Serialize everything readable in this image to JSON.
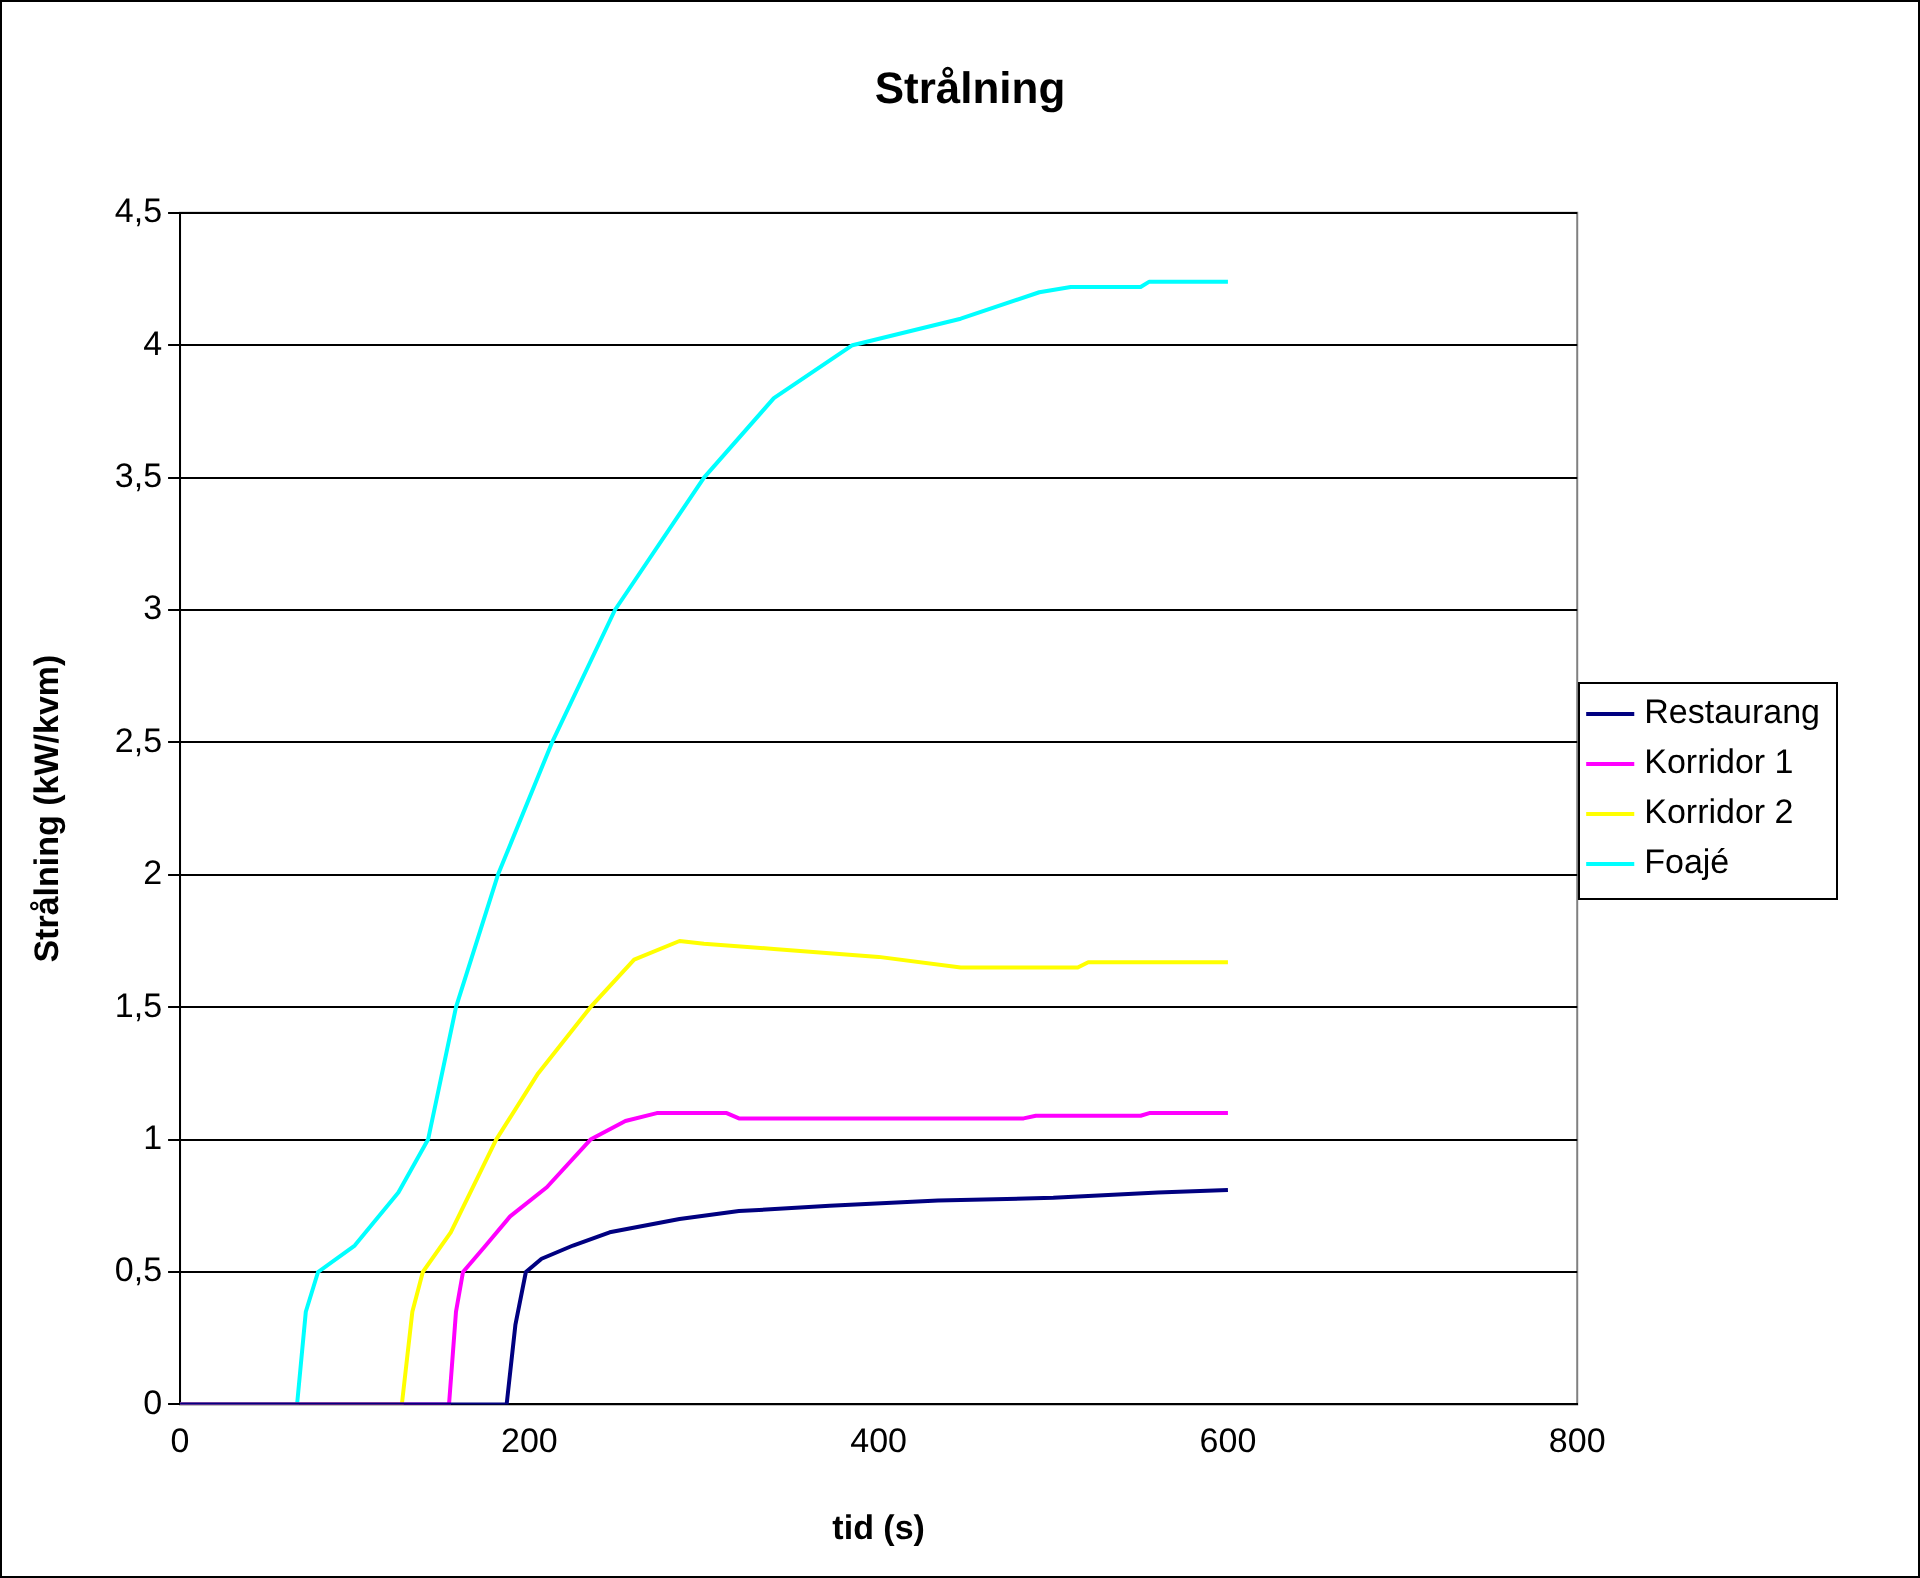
{
  "chart_data": {
    "type": "line",
    "title": "Strålning",
    "xlabel": "tid (s)",
    "ylabel": "Strålning (kW/kvm)",
    "xlim": [
      0,
      800
    ],
    "xticks": [
      0,
      200,
      400,
      600,
      800
    ],
    "ylim": [
      0,
      4.5
    ],
    "yticks": [
      0,
      {
        "value": 0.5,
        "label": "0,5"
      },
      1,
      {
        "value": 1.5,
        "label": "1,5"
      },
      2,
      {
        "value": 2.5,
        "label": "2,5"
      },
      3,
      {
        "value": 3.5,
        "label": "3,5"
      },
      4,
      {
        "value": 4.5,
        "label": "4,5"
      }
    ],
    "grid": "y",
    "legend": "right",
    "marker": "none",
    "line_style": "solid",
    "series": [
      {
        "name": "Restaurang",
        "color": "#000080",
        "x": [
          0,
          187,
          192,
          198,
          207,
          225,
          246,
          286,
          320,
          372,
          434,
          500,
          560,
          600
        ],
        "values": [
          0,
          0,
          0.3,
          0.5,
          0.55,
          0.6,
          0.65,
          0.7,
          0.73,
          0.75,
          0.77,
          0.78,
          0.8,
          0.81
        ]
      },
      {
        "name": "Korridor 1",
        "color": "#ff00ff",
        "x": [
          0,
          154,
          158,
          162,
          175,
          189,
          210,
          235,
          255,
          273,
          313,
          320,
          483,
          490,
          550,
          555,
          600
        ],
        "values": [
          0,
          0,
          0.35,
          0.5,
          0.6,
          0.71,
          0.82,
          1.0,
          1.07,
          1.1,
          1.1,
          1.08,
          1.08,
          1.09,
          1.09,
          1.1,
          1.1
        ]
      },
      {
        "name": "Korridor 2",
        "color": "#ffff00",
        "x": [
          0,
          127,
          133,
          139,
          155,
          181,
          205,
          235,
          260,
          286,
          300,
          340,
          400,
          447,
          514,
          520,
          600
        ],
        "values": [
          0,
          0,
          0.35,
          0.5,
          0.65,
          1.0,
          1.25,
          1.5,
          1.68,
          1.75,
          1.74,
          1.72,
          1.69,
          1.65,
          1.65,
          1.67,
          1.67
        ]
      },
      {
        "name": "Foajé",
        "color": "#00ffff",
        "x": [
          0,
          67,
          72,
          79,
          100,
          125,
          142,
          158,
          182,
          213,
          249,
          300,
          340,
          385,
          447,
          492,
          510,
          550,
          555,
          600
        ],
        "values": [
          0,
          0,
          0.35,
          0.5,
          0.6,
          0.8,
          1.0,
          1.5,
          2.0,
          2.5,
          3.0,
          3.5,
          3.8,
          4.0,
          4.1,
          4.2,
          4.22,
          4.22,
          4.24,
          4.24
        ]
      }
    ]
  }
}
